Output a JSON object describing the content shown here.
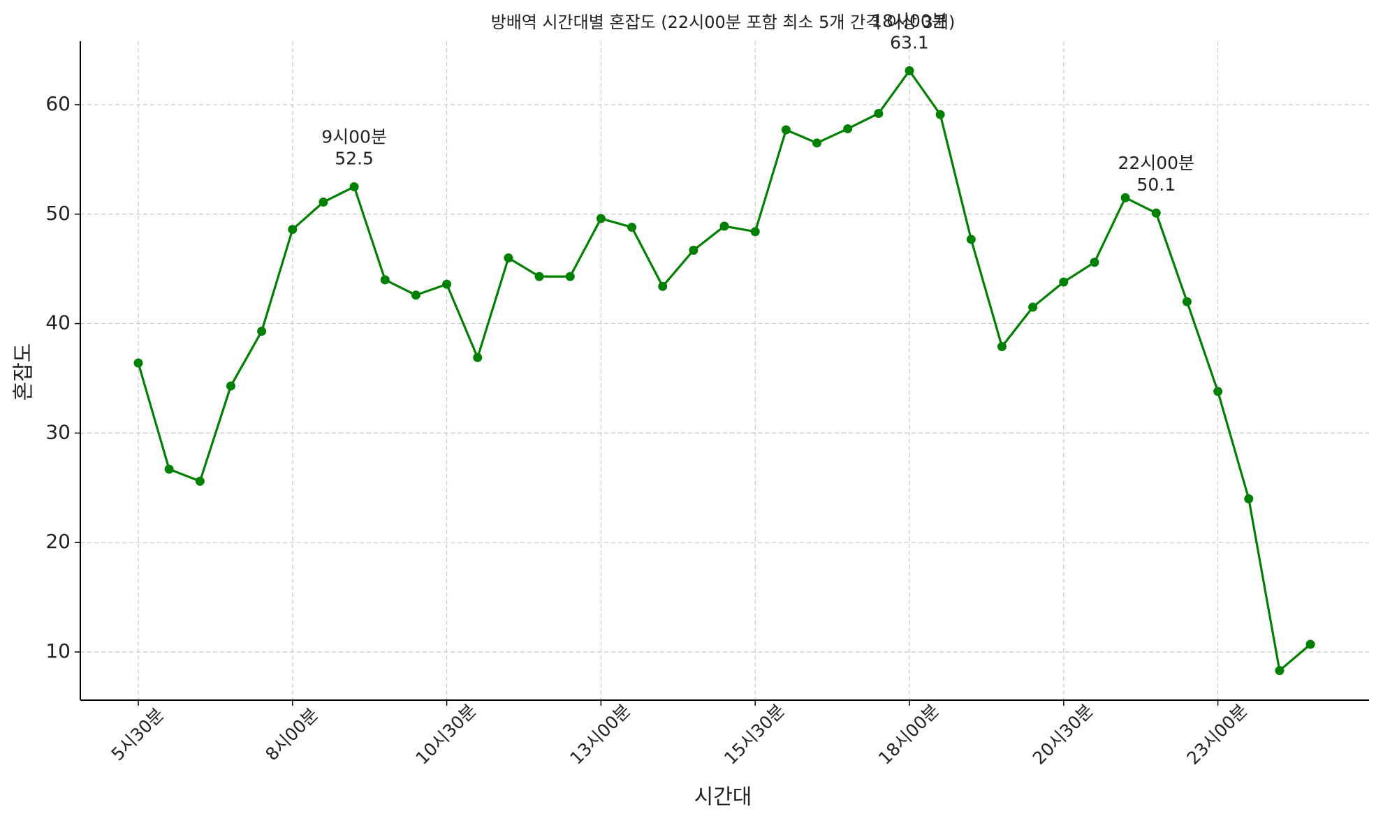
{
  "chart_data": {
    "type": "line",
    "title": "방배역 시간대별 혼잡도 (22시00분 포함 최소 5개 간격 이상 3개)",
    "x_label": "시간대",
    "y_label": "혼잡도",
    "categories": [
      "5시30분",
      null,
      null,
      null,
      null,
      "8시00분",
      null,
      null,
      null,
      null,
      "10시30분",
      null,
      null,
      null,
      null,
      "13시00분",
      null,
      null,
      null,
      null,
      "15시30분",
      null,
      null,
      null,
      null,
      "18시00분",
      null,
      null,
      null,
      null,
      "20시30분",
      null,
      null,
      null,
      null,
      "23시00분",
      null,
      null,
      null
    ],
    "series": [
      {
        "name": "혼잡도",
        "color": "#008000",
        "values": [
          36.4,
          26.7,
          25.6,
          34.3,
          39.3,
          48.6,
          51.1,
          52.5,
          44.0,
          42.6,
          43.6,
          36.9,
          46.0,
          44.3,
          44.3,
          49.6,
          48.8,
          43.4,
          46.7,
          48.9,
          48.4,
          57.7,
          56.5,
          57.8,
          59.2,
          63.1,
          59.1,
          47.7,
          37.9,
          41.5,
          43.8,
          45.6,
          51.5,
          50.1,
          42.0,
          33.8,
          24.0,
          8.3,
          10.7
        ],
        "point_labels": [
          null,
          null,
          null,
          null,
          null,
          null,
          null,
          "9시00분",
          null,
          null,
          null,
          null,
          null,
          null,
          null,
          null,
          null,
          null,
          null,
          null,
          null,
          null,
          null,
          null,
          null,
          "18시00분",
          null,
          null,
          null,
          null,
          null,
          null,
          null,
          "22시00분",
          null,
          null,
          null,
          null,
          null
        ]
      }
    ],
    "ylim": [
      5.6,
      65.8
    ],
    "yticks": [
      10,
      20,
      30,
      40,
      50,
      60
    ],
    "grid": true
  }
}
